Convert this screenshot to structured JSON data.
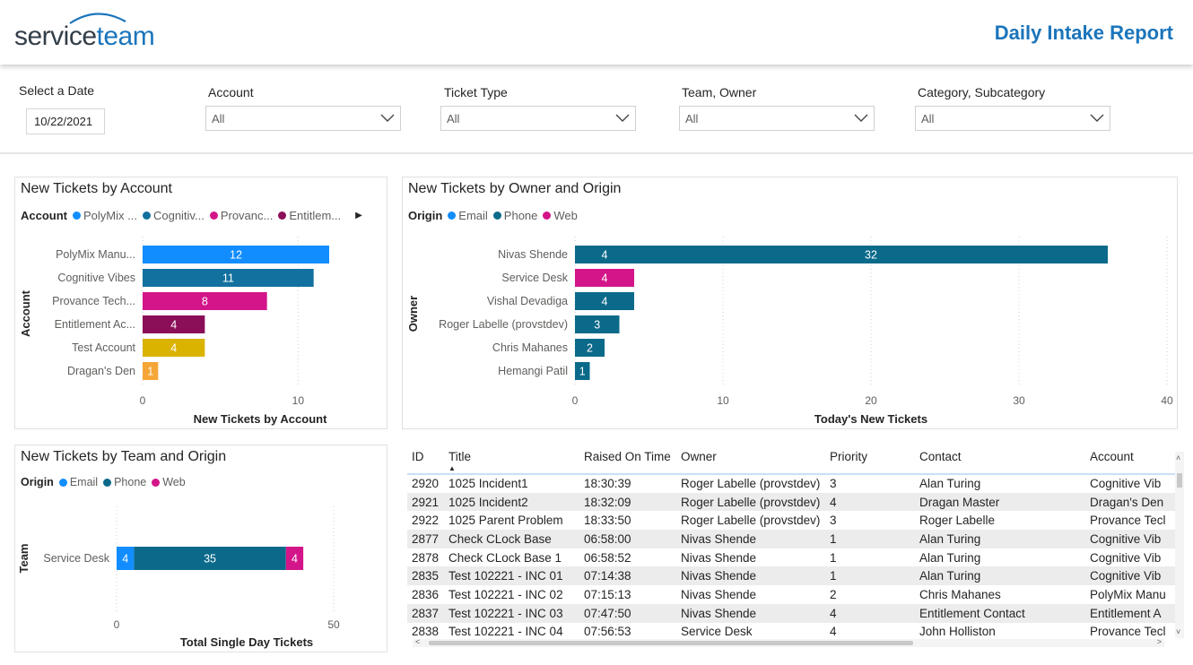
{
  "header": {
    "logo_service": "service",
    "logo_team": "team",
    "title": "Daily Intake Report"
  },
  "filters": {
    "date_label": "Select a Date",
    "date_value": "10/22/2021",
    "dropdowns": [
      {
        "label": "Account",
        "value": "All"
      },
      {
        "label": "Ticket Type",
        "value": "All"
      },
      {
        "label": "Team, Owner",
        "value": "All"
      },
      {
        "label": "Category, Subcategory",
        "value": "All"
      }
    ]
  },
  "chart_account": {
    "title": "New Tickets by Account",
    "legend_title": "Account",
    "legend": [
      "PolyMix ...",
      "Cognitiv...",
      "Provanc...",
      "Entitlem..."
    ]
  },
  "chart_owner": {
    "title": "New Tickets by Owner and Origin",
    "legend_title": "Origin",
    "legend": [
      "Email",
      "Phone",
      "Web"
    ]
  },
  "chart_team": {
    "title": "New Tickets by Team and Origin",
    "legend_title": "Origin",
    "legend": [
      "Email",
      "Phone",
      "Web"
    ]
  },
  "colors": {
    "brand": "#1b75bb",
    "polymix": "#118dff",
    "cognitive": "#12719e",
    "provance": "#d4158a",
    "entitlement": "#8b0e58",
    "test_account": "#d9b300",
    "dragan": "#f5a637",
    "email": "#118dff",
    "phone": "#0b6a8a",
    "web": "#d4158a"
  },
  "chart_data": [
    {
      "type": "bar",
      "orientation": "horizontal",
      "categories": [
        "PolyMix Manu...",
        "Cognitive Vibes",
        "Provance Tech...",
        "Entitlement Ac...",
        "Test Account",
        "Dragan's Den"
      ],
      "values": [
        12,
        11,
        8,
        4,
        4,
        1
      ],
      "bar_colors": [
        "#118dff",
        "#12719e",
        "#d4158a",
        "#8b0e58",
        "#d9b300",
        "#f5a637"
      ],
      "xlabel": "New Tickets by Account",
      "ylabel": "Account",
      "xlim": [
        0,
        12
      ],
      "xticks": [
        0,
        10
      ],
      "grid": true
    },
    {
      "type": "bar",
      "orientation": "horizontal",
      "stacked": true,
      "categories": [
        "Nivas Shende",
        "Service Desk",
        "Vishal Devadiga",
        "Roger Labelle (provstdev)",
        "Chris Mahanes",
        "Hemangi Patil"
      ],
      "series": [
        {
          "name": "Email",
          "color": "#118dff",
          "values": [
            0,
            0,
            0,
            0,
            0,
            0
          ]
        },
        {
          "name": "Phone",
          "color": "#0b6a8a",
          "values": [
            4,
            0,
            4,
            3,
            2,
            1
          ]
        },
        {
          "name": "Web",
          "color": "#d4158a",
          "values": [
            0,
            4,
            0,
            0,
            0,
            0
          ]
        },
        {
          "name": "",
          "color": "#0b6a8a",
          "values": [
            32,
            0,
            0,
            0,
            0,
            0
          ]
        }
      ],
      "xlabel": "Today's New Tickets",
      "ylabel": "Owner",
      "xlim": [
        0,
        40
      ],
      "xticks": [
        0,
        10,
        20,
        30,
        40
      ],
      "grid": true
    },
    {
      "type": "bar",
      "orientation": "horizontal",
      "stacked": true,
      "categories": [
        "Service Desk"
      ],
      "series": [
        {
          "name": "Email",
          "color": "#118dff",
          "values": [
            4
          ]
        },
        {
          "name": "Phone",
          "color": "#0b6a8a",
          "values": [
            35
          ]
        },
        {
          "name": "Web",
          "color": "#d4158a",
          "values": [
            4
          ]
        }
      ],
      "xlabel": "Total Single Day Tickets",
      "ylabel": "Team",
      "xlim": [
        0,
        50
      ],
      "xticks": [
        0,
        50
      ],
      "grid": true
    }
  ],
  "table": {
    "columns": [
      "ID",
      "Title",
      "Raised On Time",
      "Owner",
      "Priority",
      "Contact",
      "Account"
    ],
    "rows": [
      [
        "2920",
        "1025 Incident1",
        "18:30:39",
        "Roger Labelle (provstdev)",
        "3",
        "Alan Turing",
        "Cognitive Vib"
      ],
      [
        "2921",
        "1025 Incident2",
        "18:32:09",
        "Roger Labelle (provstdev)",
        "4",
        "Dragan Master",
        "Dragan's Den"
      ],
      [
        "2922",
        "1025 Parent Problem",
        "18:33:50",
        "Roger Labelle (provstdev)",
        "3",
        "Roger Labelle",
        "Provance Tecl"
      ],
      [
        "2877",
        "Check CLock Base",
        "06:58:00",
        "Nivas Shende",
        "1",
        "Alan Turing",
        "Cognitive Vib"
      ],
      [
        "2878",
        "Check CLock Base 1",
        "06:58:52",
        "Nivas Shende",
        "1",
        "Alan Turing",
        "Cognitive Vib"
      ],
      [
        "2835",
        "Test 102221 - INC 01",
        "07:14:38",
        "Nivas Shende",
        "1",
        "Alan Turing",
        "Cognitive Vib"
      ],
      [
        "2836",
        "Test 102221 - INC 02",
        "07:15:13",
        "Nivas Shende",
        "2",
        "Chris Mahanes",
        "PolyMix Manu"
      ],
      [
        "2837",
        "Test 102221 - INC 03",
        "07:47:50",
        "Nivas Shende",
        "4",
        "Entitlement Contact",
        "Entitlement A"
      ],
      [
        "2838",
        "Test 102221 - INC 04",
        "07:56:53",
        "Service Desk",
        "4",
        "John Holliston",
        "Provance Tecl"
      ]
    ]
  }
}
